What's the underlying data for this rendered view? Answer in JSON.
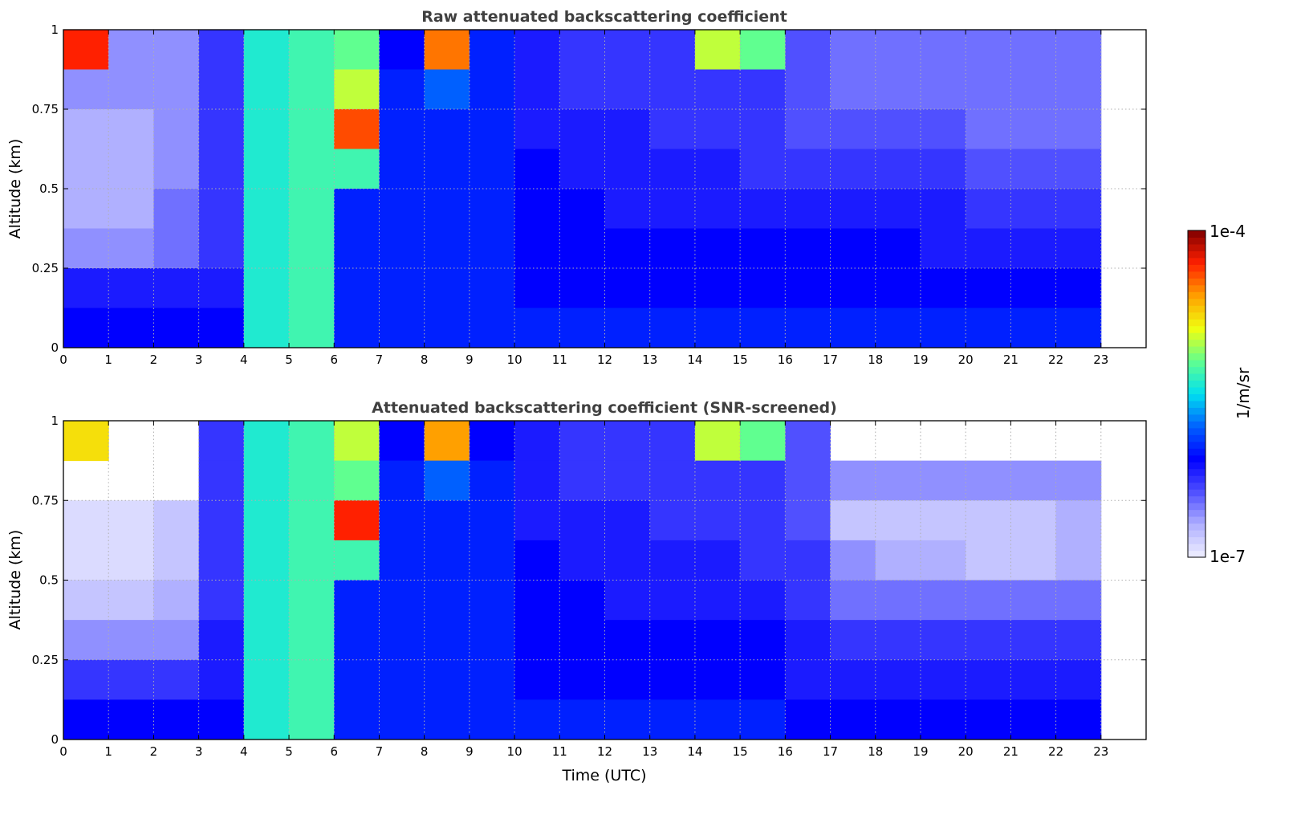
{
  "chart_data": [
    {
      "type": "heatmap",
      "title": "Raw attenuated backscattering coefficient",
      "xlabel": "",
      "ylabel": "Altitude (km)",
      "xlim": [
        0,
        24
      ],
      "ylim": [
        0,
        1
      ],
      "xticks": [
        "0",
        "1",
        "2",
        "3",
        "4",
        "5",
        "6",
        "7",
        "8",
        "9",
        "10",
        "11",
        "12",
        "13",
        "14",
        "15",
        "16",
        "17",
        "18",
        "19",
        "20",
        "21",
        "22",
        "23"
      ],
      "yticks": [
        "0",
        "0.25",
        "0.5",
        "0.75",
        "1"
      ],
      "grid": true,
      "x_bin_hours": 1,
      "y_bins_km": [
        0.875,
        0.75,
        0.625,
        0.5,
        0.375,
        0.25,
        0.125,
        0
      ],
      "value_unit": "log10(1/m/sr)",
      "z": [
        [
          -4.3,
          -6.6,
          -6.6,
          -6.3,
          -5.4,
          -5.3,
          -5.2,
          -6.1,
          -4.5,
          -6.0,
          -6.2,
          -6.3,
          -6.3,
          -6.3,
          -5.0,
          -5.2,
          -6.4,
          -6.5,
          -6.5,
          -6.5,
          -6.5,
          -6.5,
          -6.5,
          null
        ],
        [
          -6.6,
          -6.6,
          -6.6,
          -6.3,
          -5.4,
          -5.3,
          -5.0,
          -6.0,
          -5.8,
          -6.0,
          -6.2,
          -6.3,
          -6.3,
          -6.3,
          -6.3,
          -6.3,
          -6.4,
          -6.5,
          -6.5,
          -6.5,
          -6.5,
          -6.5,
          -6.5,
          null
        ],
        [
          -6.7,
          -6.7,
          -6.6,
          -6.3,
          -5.4,
          -5.3,
          -4.4,
          -6.0,
          -6.0,
          -6.0,
          -6.2,
          -6.2,
          -6.2,
          -6.3,
          -6.3,
          -6.3,
          -6.4,
          -6.4,
          -6.4,
          -6.4,
          -6.5,
          -6.5,
          -6.5,
          null
        ],
        [
          -6.7,
          -6.7,
          -6.6,
          -6.3,
          -5.4,
          -5.3,
          -5.3,
          -6.0,
          -6.0,
          -6.0,
          -6.1,
          -6.2,
          -6.2,
          -6.2,
          -6.2,
          -6.3,
          -6.3,
          -6.3,
          -6.3,
          -6.3,
          -6.4,
          -6.4,
          -6.4,
          null
        ],
        [
          -6.7,
          -6.7,
          -6.5,
          -6.3,
          -5.4,
          -5.3,
          -6.0,
          -6.0,
          -6.0,
          -6.0,
          -6.1,
          -6.1,
          -6.2,
          -6.2,
          -6.2,
          -6.2,
          -6.2,
          -6.2,
          -6.2,
          -6.2,
          -6.3,
          -6.3,
          -6.3,
          null
        ],
        [
          -6.6,
          -6.6,
          -6.5,
          -6.3,
          -5.4,
          -5.3,
          -6.0,
          -6.0,
          -6.0,
          -6.0,
          -6.1,
          -6.1,
          -6.1,
          -6.1,
          -6.1,
          -6.1,
          -6.1,
          -6.1,
          -6.1,
          -6.2,
          -6.2,
          -6.2,
          -6.2,
          null
        ],
        [
          -6.2,
          -6.2,
          -6.2,
          -6.2,
          -5.4,
          -5.3,
          -6.0,
          -6.0,
          -6.0,
          -6.0,
          -6.1,
          -6.1,
          -6.1,
          -6.1,
          -6.1,
          -6.1,
          -6.1,
          -6.1,
          -6.1,
          -6.1,
          -6.1,
          -6.1,
          -6.1,
          null
        ],
        [
          -6.1,
          -6.1,
          -6.1,
          -6.1,
          -5.4,
          -5.3,
          -6.0,
          -6.0,
          -6.0,
          -6.0,
          -6.0,
          -6.0,
          -6.0,
          -6.0,
          -6.0,
          -6.0,
          -6.0,
          -6.0,
          -6.0,
          -6.0,
          -6.0,
          -6.0,
          -6.0,
          null
        ]
      ]
    },
    {
      "type": "heatmap",
      "title": "Attenuated backscattering coefficient (SNR-screened)",
      "xlabel": "Time (UTC)",
      "ylabel": "Altitude (km)",
      "xlim": [
        0,
        24
      ],
      "ylim": [
        0,
        1
      ],
      "xticks": [
        "0",
        "1",
        "2",
        "3",
        "4",
        "5",
        "6",
        "7",
        "8",
        "9",
        "10",
        "11",
        "12",
        "13",
        "14",
        "15",
        "16",
        "17",
        "18",
        "19",
        "20",
        "21",
        "22",
        "23"
      ],
      "yticks": [
        "0",
        "0.25",
        "0.5",
        "0.75",
        "1"
      ],
      "grid": true,
      "x_bin_hours": 1,
      "y_bins_km": [
        0.875,
        0.75,
        0.625,
        0.5,
        0.375,
        0.25,
        0.125,
        0
      ],
      "value_unit": "log10(1/m/sr)",
      "z": [
        [
          -4.8,
          null,
          null,
          -6.3,
          -5.4,
          -5.3,
          -5.0,
          -6.1,
          -4.6,
          -6.1,
          -6.2,
          -6.3,
          -6.3,
          -6.3,
          -5.0,
          -5.2,
          -6.4,
          null,
          null,
          null,
          null,
          null,
          null,
          null
        ],
        [
          null,
          null,
          null,
          -6.3,
          -5.4,
          -5.3,
          -5.2,
          -6.0,
          -5.8,
          -6.0,
          -6.2,
          -6.3,
          -6.3,
          -6.3,
          -6.3,
          -6.3,
          -6.4,
          -6.6,
          -6.6,
          -6.6,
          -6.6,
          -6.6,
          -6.6,
          null
        ],
        [
          -6.9,
          -6.9,
          -6.8,
          -6.3,
          -5.4,
          -5.3,
          -4.3,
          -6.0,
          -6.0,
          -6.0,
          -6.2,
          -6.2,
          -6.2,
          -6.3,
          -6.3,
          -6.3,
          -6.4,
          -6.8,
          -6.8,
          -6.8,
          -6.8,
          -6.8,
          -6.7,
          null
        ],
        [
          -6.9,
          -6.9,
          -6.8,
          -6.3,
          -5.4,
          -5.3,
          -5.3,
          -6.0,
          -6.0,
          -6.0,
          -6.1,
          -6.2,
          -6.2,
          -6.2,
          -6.2,
          -6.3,
          -6.3,
          -6.6,
          -6.7,
          -6.7,
          -6.8,
          -6.8,
          -6.7,
          null
        ],
        [
          -6.8,
          -6.8,
          -6.7,
          -6.3,
          -5.4,
          -5.3,
          -6.0,
          -6.0,
          -6.0,
          -6.0,
          -6.1,
          -6.1,
          -6.2,
          -6.2,
          -6.2,
          -6.2,
          -6.3,
          -6.5,
          -6.5,
          -6.5,
          -6.5,
          -6.5,
          -6.5,
          null
        ],
        [
          -6.6,
          -6.6,
          -6.6,
          -6.2,
          -5.4,
          -5.3,
          -6.0,
          -6.0,
          -6.0,
          -6.0,
          -6.1,
          -6.1,
          -6.1,
          -6.1,
          -6.1,
          -6.1,
          -6.2,
          -6.3,
          -6.3,
          -6.3,
          -6.3,
          -6.3,
          -6.3,
          null
        ],
        [
          -6.3,
          -6.3,
          -6.3,
          -6.2,
          -5.4,
          -5.3,
          -6.0,
          -6.0,
          -6.0,
          -6.0,
          -6.1,
          -6.1,
          -6.1,
          -6.1,
          -6.1,
          -6.1,
          -6.2,
          -6.2,
          -6.2,
          -6.2,
          -6.2,
          -6.2,
          -6.2,
          null
        ],
        [
          -6.1,
          -6.1,
          -6.1,
          -6.1,
          -5.4,
          -5.3,
          -6.0,
          -6.0,
          -6.0,
          -6.0,
          -6.0,
          -6.0,
          -6.0,
          -6.0,
          -6.0,
          -6.0,
          -6.1,
          -6.1,
          -6.1,
          -6.1,
          -6.1,
          -6.1,
          -6.1,
          null
        ]
      ]
    }
  ],
  "colorbar": {
    "label": "1/m/sr",
    "max_label": "1e-4",
    "min_label": "1e-7",
    "log10_range": [
      -7,
      -4
    ],
    "stops": [
      "#f0f0ff",
      "#b0b0ff",
      "#5050ff",
      "#0000ff",
      "#0060ff",
      "#00e0f0",
      "#60ff90",
      "#f0ff10",
      "#ffa000",
      "#ff2000",
      "#800000"
    ]
  }
}
